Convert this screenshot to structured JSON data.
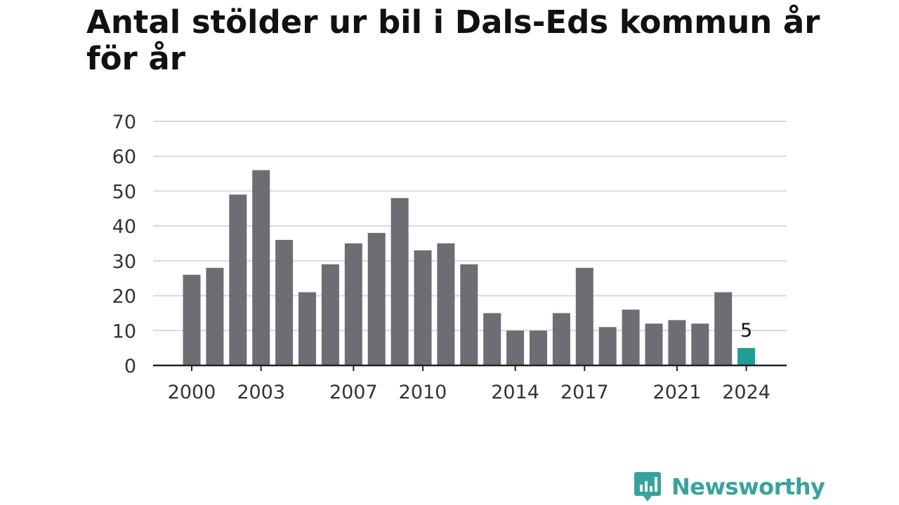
{
  "title": "Antal stölder ur bil i Dals-Eds kommun år för år",
  "brand": {
    "name": "Newsworthy",
    "color": "#38a39e"
  },
  "chart_data": {
    "type": "bar",
    "title": "Antal stölder ur bil i Dals-Eds kommun år för år",
    "xlabel": "",
    "ylabel": "",
    "ylim": [
      0,
      70
    ],
    "yticks": [
      0,
      10,
      20,
      30,
      40,
      50,
      60,
      70
    ],
    "xtick_labels": [
      "2000",
      "2003",
      "2007",
      "2010",
      "2014",
      "2017",
      "2021",
      "2024"
    ],
    "grid": true,
    "categories": [
      "2000",
      "2001",
      "2002",
      "2003",
      "2004",
      "2005",
      "2006",
      "2007",
      "2008",
      "2009",
      "2010",
      "2011",
      "2012",
      "2013",
      "2014",
      "2015",
      "2016",
      "2017",
      "2018",
      "2019",
      "2020",
      "2021",
      "2022",
      "2023",
      "2024"
    ],
    "values": [
      26,
      28,
      49,
      56,
      36,
      21,
      29,
      35,
      38,
      48,
      33,
      35,
      29,
      15,
      10,
      10,
      15,
      28,
      11,
      16,
      12,
      13,
      12,
      21,
      5
    ],
    "annotations": [
      {
        "category": "2024",
        "text": "5"
      }
    ],
    "colors": {
      "bar": "#6e6d74",
      "highlight": "#1f9e96",
      "grid": "#d9d9d9",
      "axis": "#222222",
      "tick_text": "#333333"
    }
  }
}
